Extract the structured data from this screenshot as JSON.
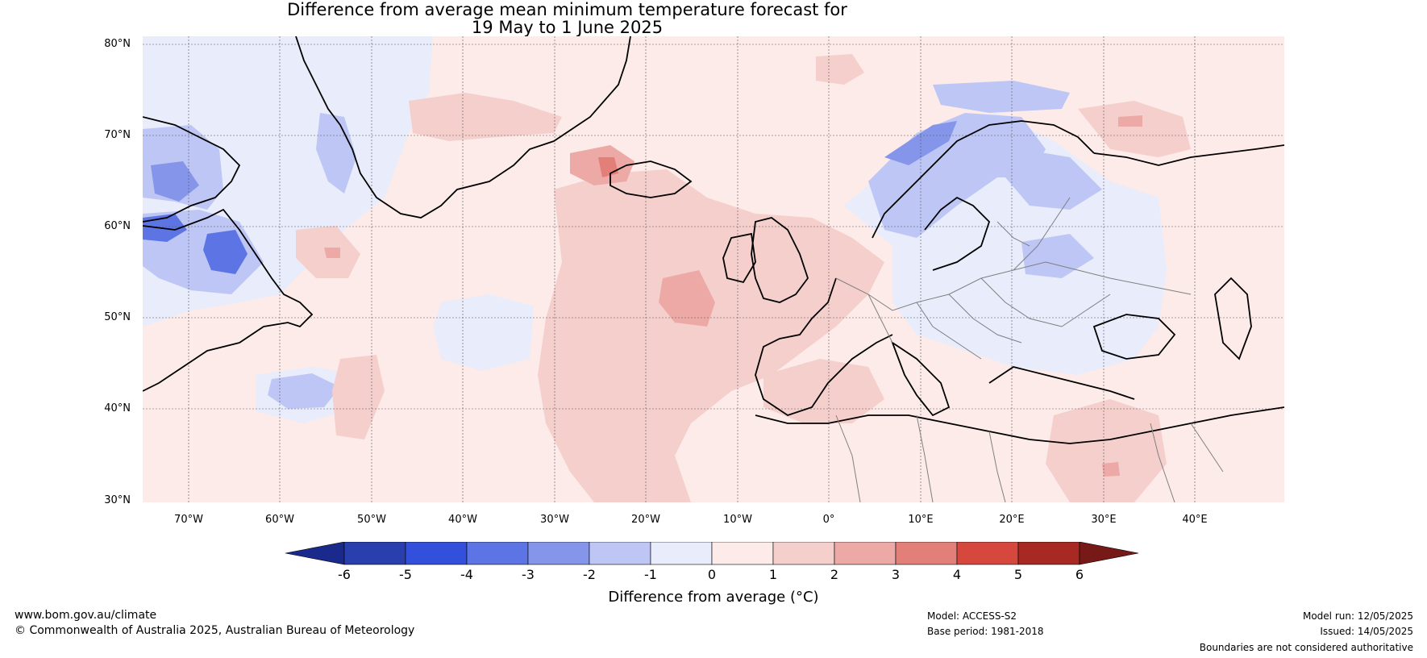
{
  "title": {
    "line1": "Difference from average mean minimum temperature forecast for",
    "line2": "19 May to 1 June 2025"
  },
  "map": {
    "lat_labels": [
      "80°N",
      "70°N",
      "60°N",
      "50°N",
      "40°N",
      "30°N"
    ],
    "lon_labels": [
      "70°W",
      "60°W",
      "50°W",
      "40°W",
      "30°W",
      "20°W",
      "10°W",
      "0°",
      "10°E",
      "20°E",
      "30°E",
      "40°E"
    ],
    "land_color": "#000000",
    "border_color": "#808080",
    "grid": true
  },
  "colorbar": {
    "ticks": [
      "-6",
      "-5",
      "-4",
      "-3",
      "-2",
      "-1",
      "0",
      "1",
      "2",
      "3",
      "4",
      "5",
      "6"
    ],
    "colors": [
      "#1a2a8c",
      "#2a3fae",
      "#3350dc",
      "#5c74e4",
      "#8596ea",
      "#bdc6f4",
      "#e8ecfb",
      "#fcebe9",
      "#f4cfcc",
      "#eca9a5",
      "#e27f78",
      "#d6473e",
      "#a82823",
      "#771a17"
    ],
    "label": "Difference from average (°C)"
  },
  "footer": {
    "website": "www.bom.gov.au/climate",
    "copyright": "© Commonwealth of Australia 2025, Australian Bureau of Meteorology",
    "model": "Model: ACCESS-S2",
    "base_period": "Base period: 1981-2018",
    "model_run": "Model run: 12/05/2025",
    "issued": "Issued: 14/05/2025",
    "disclaimer": "Boundaries are not considered authoritative"
  }
}
